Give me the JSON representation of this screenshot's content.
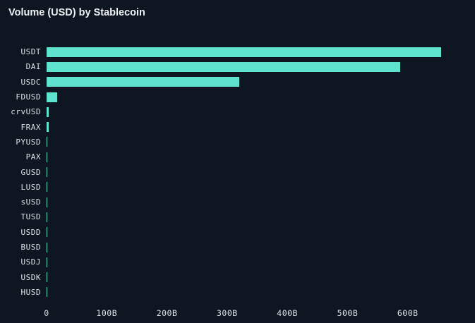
{
  "chart_data": {
    "type": "bar",
    "orientation": "horizontal",
    "title": "Volume (USD) by Stablecoin",
    "xlabel": "",
    "ylabel": "",
    "categories": [
      "USDT",
      "DAI",
      "USDC",
      "FDUSD",
      "crvUSD",
      "FRAX",
      "PYUSD",
      "PAX",
      "GUSD",
      "LUSD",
      "sUSD",
      "TUSD",
      "USDD",
      "BUSD",
      "USDJ",
      "USDK",
      "HUSD"
    ],
    "values": [
      655,
      587,
      320,
      18,
      4,
      3,
      1.2,
      1.6,
      0.9,
      1.1,
      1.0,
      0.9,
      0.9,
      1.1,
      0.25,
      0.2,
      0.1
    ],
    "unit": "B",
    "xlim": [
      0,
      700
    ],
    "x_ticks": [
      {
        "value": 0,
        "label": "0"
      },
      {
        "value": 100,
        "label": "100B"
      },
      {
        "value": 200,
        "label": "200B"
      },
      {
        "value": 300,
        "label": "300B"
      },
      {
        "value": 400,
        "label": "400B"
      },
      {
        "value": 500,
        "label": "500B"
      },
      {
        "value": 600,
        "label": "600B"
      }
    ],
    "grid": false,
    "legend": "none",
    "colors": {
      "background": "#0e1621",
      "bar": "#5fe3cf",
      "text": "#dde2e8",
      "title_text": "#eef1f4"
    }
  }
}
